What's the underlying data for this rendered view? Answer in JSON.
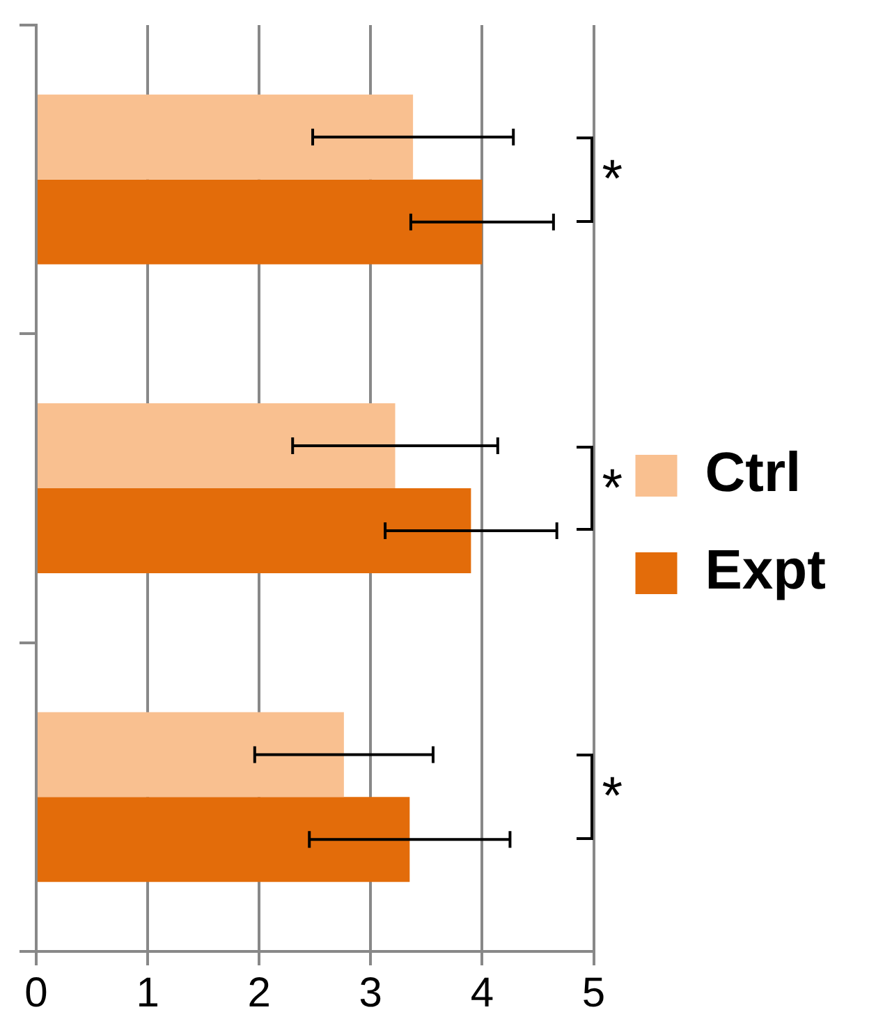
{
  "chart_data": {
    "type": "bar",
    "orientation": "horizontal",
    "categories": [
      null,
      null,
      null
    ],
    "series": [
      {
        "name": "Ctrl",
        "color": "#f9c090",
        "values": [
          3.38,
          3.22,
          2.76
        ],
        "errors": [
          0.9,
          0.92,
          0.8
        ]
      },
      {
        "name": "Expt",
        "color": "#e36c0a",
        "values": [
          4.0,
          3.9,
          3.35
        ],
        "errors": [
          0.64,
          0.77,
          0.9
        ]
      }
    ],
    "xlim": [
      0,
      5
    ],
    "xticks": [
      0,
      1,
      2,
      3,
      4,
      5
    ],
    "grid": "x",
    "legend": "right",
    "tick_labels": "x",
    "annotations": [
      "*",
      "*",
      "*"
    ]
  }
}
